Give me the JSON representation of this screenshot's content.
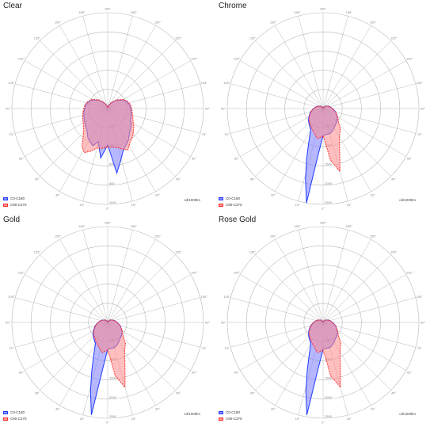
{
  "colors": {
    "grid": "#b8b8b8",
    "c0": "#1f3cff",
    "c0_fill": "#7c7cff",
    "c90": "#ff2a2a",
    "c90_fill": "#ff8a8a"
  },
  "chart_data": [
    {
      "type": "polar",
      "title": "Clear",
      "unit_label": "cd/1000lm",
      "radial_ticks": [
        200,
        400,
        600,
        800,
        1000
      ],
      "rmax": 1000,
      "angle_labels": [
        "180°",
        "165°",
        "150°",
        "135°",
        "120°",
        "105°",
        "90°",
        "75°",
        "60°",
        "45°",
        "30°",
        "15°",
        "0°",
        "15°",
        "30°",
        "45°",
        "60°",
        "75°",
        "90°",
        "105°",
        "120°",
        "135°",
        "150°",
        "165°"
      ],
      "series": [
        {
          "name": "C0-C180",
          "angles": [
            0,
            8,
            16,
            22,
            28,
            34,
            42,
            50,
            58,
            66,
            74,
            82,
            90,
            100,
            110,
            120,
            135,
            150,
            165,
            180,
            195,
            210,
            225,
            240,
            250,
            260,
            270,
            280,
            290,
            298,
            304,
            312,
            318,
            326,
            334,
            340,
            346,
            352
          ],
          "values": [
            380,
            520,
            360,
            420,
            390,
            370,
            320,
            300,
            280,
            270,
            260,
            250,
            240,
            230,
            210,
            180,
            120,
            60,
            30,
            10,
            30,
            60,
            120,
            180,
            210,
            230,
            240,
            250,
            260,
            270,
            300,
            320,
            340,
            390,
            430,
            470,
            560,
            680
          ]
        },
        {
          "name": "C90-C270",
          "angles": [
            0,
            8,
            16,
            22,
            28,
            34,
            42,
            50,
            58,
            66,
            74,
            82,
            90,
            100,
            110,
            120,
            135,
            150,
            165,
            180,
            195,
            210,
            225,
            240,
            250,
            260,
            270,
            280,
            290,
            298,
            304,
            312,
            318,
            326,
            334,
            340,
            346,
            352
          ],
          "values": [
            400,
            420,
            430,
            480,
            520,
            480,
            380,
            330,
            300,
            285,
            270,
            260,
            250,
            240,
            220,
            190,
            130,
            70,
            35,
            10,
            35,
            70,
            130,
            190,
            220,
            240,
            250,
            260,
            280,
            300,
            330,
            360,
            390,
            420,
            480,
            450,
            420,
            410
          ]
        }
      ]
    },
    {
      "type": "polar",
      "title": "Chrome",
      "unit_label": "cd/1000lm",
      "radial_ticks": [
        500,
        1000,
        1500,
        2000,
        2500
      ],
      "rmax": 2500,
      "angle_labels": [
        "180°",
        "165°",
        "150°",
        "135°",
        "120°",
        "105°",
        "90°",
        "75°",
        "60°",
        "45°",
        "30°",
        "15°",
        "0°",
        "15°",
        "30°",
        "45°",
        "60°",
        "75°",
        "90°",
        "105°",
        "120°",
        "135°",
        "150°",
        "165°"
      ],
      "series": [
        {
          "name": "C0-C180",
          "angles": [
            0,
            6,
            10,
            14,
            18,
            24,
            30,
            40,
            50,
            60,
            75,
            90,
            110,
            135,
            160,
            180,
            200,
            225,
            250,
            270,
            285,
            300,
            310,
            320,
            330,
            338,
            345,
            352,
            356
          ],
          "values": [
            700,
            1200,
            2500,
            1900,
            1400,
            900,
            650,
            560,
            500,
            430,
            340,
            250,
            170,
            90,
            30,
            10,
            30,
            90,
            170,
            250,
            340,
            430,
            480,
            520,
            580,
            640,
            680,
            680,
            690
          ]
        },
        {
          "name": "C90-C270",
          "angles": [
            0,
            6,
            10,
            14,
            18,
            24,
            30,
            40,
            50,
            60,
            75,
            90,
            110,
            135,
            160,
            180,
            200,
            225,
            250,
            270,
            285,
            300,
            310,
            320,
            330,
            338,
            345,
            352,
            356
          ],
          "values": [
            720,
            760,
            800,
            750,
            700,
            640,
            600,
            530,
            480,
            420,
            330,
            250,
            170,
            90,
            30,
            10,
            30,
            90,
            170,
            250,
            340,
            440,
            520,
            700,
            850,
            1150,
            1700,
            1350,
            900
          ]
        }
      ]
    },
    {
      "type": "polar",
      "title": "Gold",
      "unit_label": "cd/1000lm",
      "radial_ticks": [
        500,
        1000,
        1500,
        2000,
        2500
      ],
      "rmax": 2500,
      "angle_labels": [
        "180°",
        "165°",
        "150°",
        "135°",
        "120°",
        "105°",
        "90°",
        "75°",
        "60°",
        "45°",
        "30°",
        "15°",
        "0°",
        "15°",
        "30°",
        "45°",
        "60°",
        "75°",
        "90°",
        "105°",
        "120°",
        "135°",
        "150°",
        "165°"
      ],
      "series": [
        {
          "name": "C0-C180",
          "angles": [
            0,
            6,
            10,
            14,
            18,
            24,
            30,
            40,
            50,
            60,
            75,
            90,
            110,
            135,
            160,
            180,
            200,
            225,
            250,
            270,
            285,
            300,
            310,
            320,
            330,
            338,
            345,
            352,
            356
          ],
          "values": [
            700,
            1200,
            2450,
            1850,
            1350,
            880,
            640,
            560,
            500,
            430,
            340,
            250,
            170,
            90,
            30,
            10,
            30,
            90,
            170,
            250,
            340,
            430,
            480,
            520,
            580,
            640,
            680,
            680,
            690
          ]
        },
        {
          "name": "C90-C270",
          "angles": [
            0,
            6,
            10,
            14,
            18,
            24,
            30,
            40,
            50,
            60,
            75,
            90,
            110,
            135,
            160,
            180,
            200,
            225,
            250,
            270,
            285,
            300,
            310,
            320,
            330,
            338,
            345,
            352,
            356
          ],
          "values": [
            720,
            760,
            800,
            750,
            700,
            640,
            600,
            530,
            480,
            420,
            330,
            250,
            170,
            90,
            30,
            10,
            30,
            90,
            170,
            250,
            340,
            440,
            520,
            720,
            880,
            1200,
            1750,
            1400,
            920
          ]
        }
      ]
    },
    {
      "type": "polar",
      "title": "Rose Gold",
      "unit_label": "cd/1000lm",
      "radial_ticks": [
        500,
        1000,
        1500,
        2000,
        2500
      ],
      "rmax": 2500,
      "angle_labels": [
        "180°",
        "165°",
        "150°",
        "135°",
        "120°",
        "105°",
        "90°",
        "75°",
        "60°",
        "45°",
        "30°",
        "15°",
        "0°",
        "15°",
        "30°",
        "45°",
        "60°",
        "75°",
        "90°",
        "105°",
        "120°",
        "135°",
        "150°",
        "165°"
      ],
      "series": [
        {
          "name": "C0-C180",
          "angles": [
            0,
            6,
            10,
            14,
            18,
            24,
            30,
            40,
            50,
            60,
            75,
            90,
            110,
            135,
            160,
            180,
            200,
            225,
            250,
            270,
            285,
            300,
            310,
            320,
            330,
            338,
            345,
            352,
            356
          ],
          "values": [
            700,
            1200,
            2450,
            1850,
            1350,
            880,
            640,
            560,
            500,
            430,
            340,
            250,
            170,
            90,
            30,
            10,
            30,
            90,
            170,
            250,
            340,
            430,
            480,
            520,
            580,
            640,
            680,
            680,
            690
          ]
        },
        {
          "name": "C90-C270",
          "angles": [
            0,
            6,
            10,
            14,
            18,
            24,
            30,
            40,
            50,
            60,
            75,
            90,
            110,
            135,
            160,
            180,
            200,
            225,
            250,
            270,
            285,
            300,
            310,
            320,
            330,
            338,
            345,
            352,
            356
          ],
          "values": [
            720,
            760,
            800,
            750,
            700,
            640,
            600,
            530,
            480,
            420,
            330,
            250,
            170,
            90,
            30,
            10,
            30,
            90,
            170,
            250,
            340,
            440,
            520,
            720,
            880,
            1200,
            1750,
            1400,
            920
          ]
        }
      ]
    }
  ]
}
